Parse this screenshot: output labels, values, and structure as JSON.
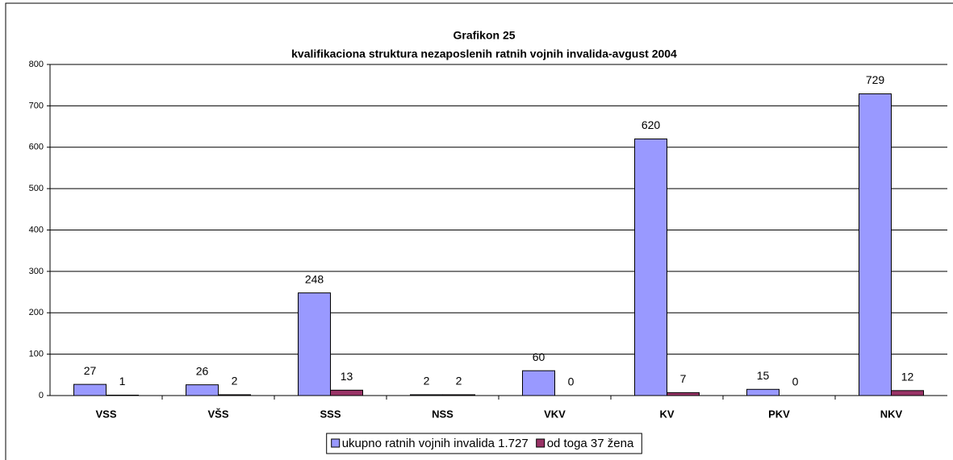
{
  "chart_data": {
    "type": "bar",
    "title": "Grafikon 25",
    "subtitle": "kvalifikaciona struktura nezaposlenih ratnih vojnih invalida-avgust 2004",
    "categories": [
      "VSS",
      "VŠS",
      "SSS",
      "NSS",
      "VKV",
      "KV",
      "PKV",
      "NKV"
    ],
    "series": [
      {
        "name": "ukupno ratnih vojnih invalida 1.727",
        "color": "#9999ff",
        "values": [
          27,
          26,
          248,
          2,
          60,
          620,
          15,
          729
        ]
      },
      {
        "name": "od toga 37 žena",
        "color": "#993366",
        "values": [
          1,
          2,
          13,
          2,
          0,
          7,
          0,
          12
        ]
      }
    ],
    "ylim": [
      0,
      800
    ],
    "yticks": [
      0,
      100,
      200,
      300,
      400,
      500,
      600,
      700,
      800
    ],
    "grid": true,
    "legend": "bottom"
  }
}
